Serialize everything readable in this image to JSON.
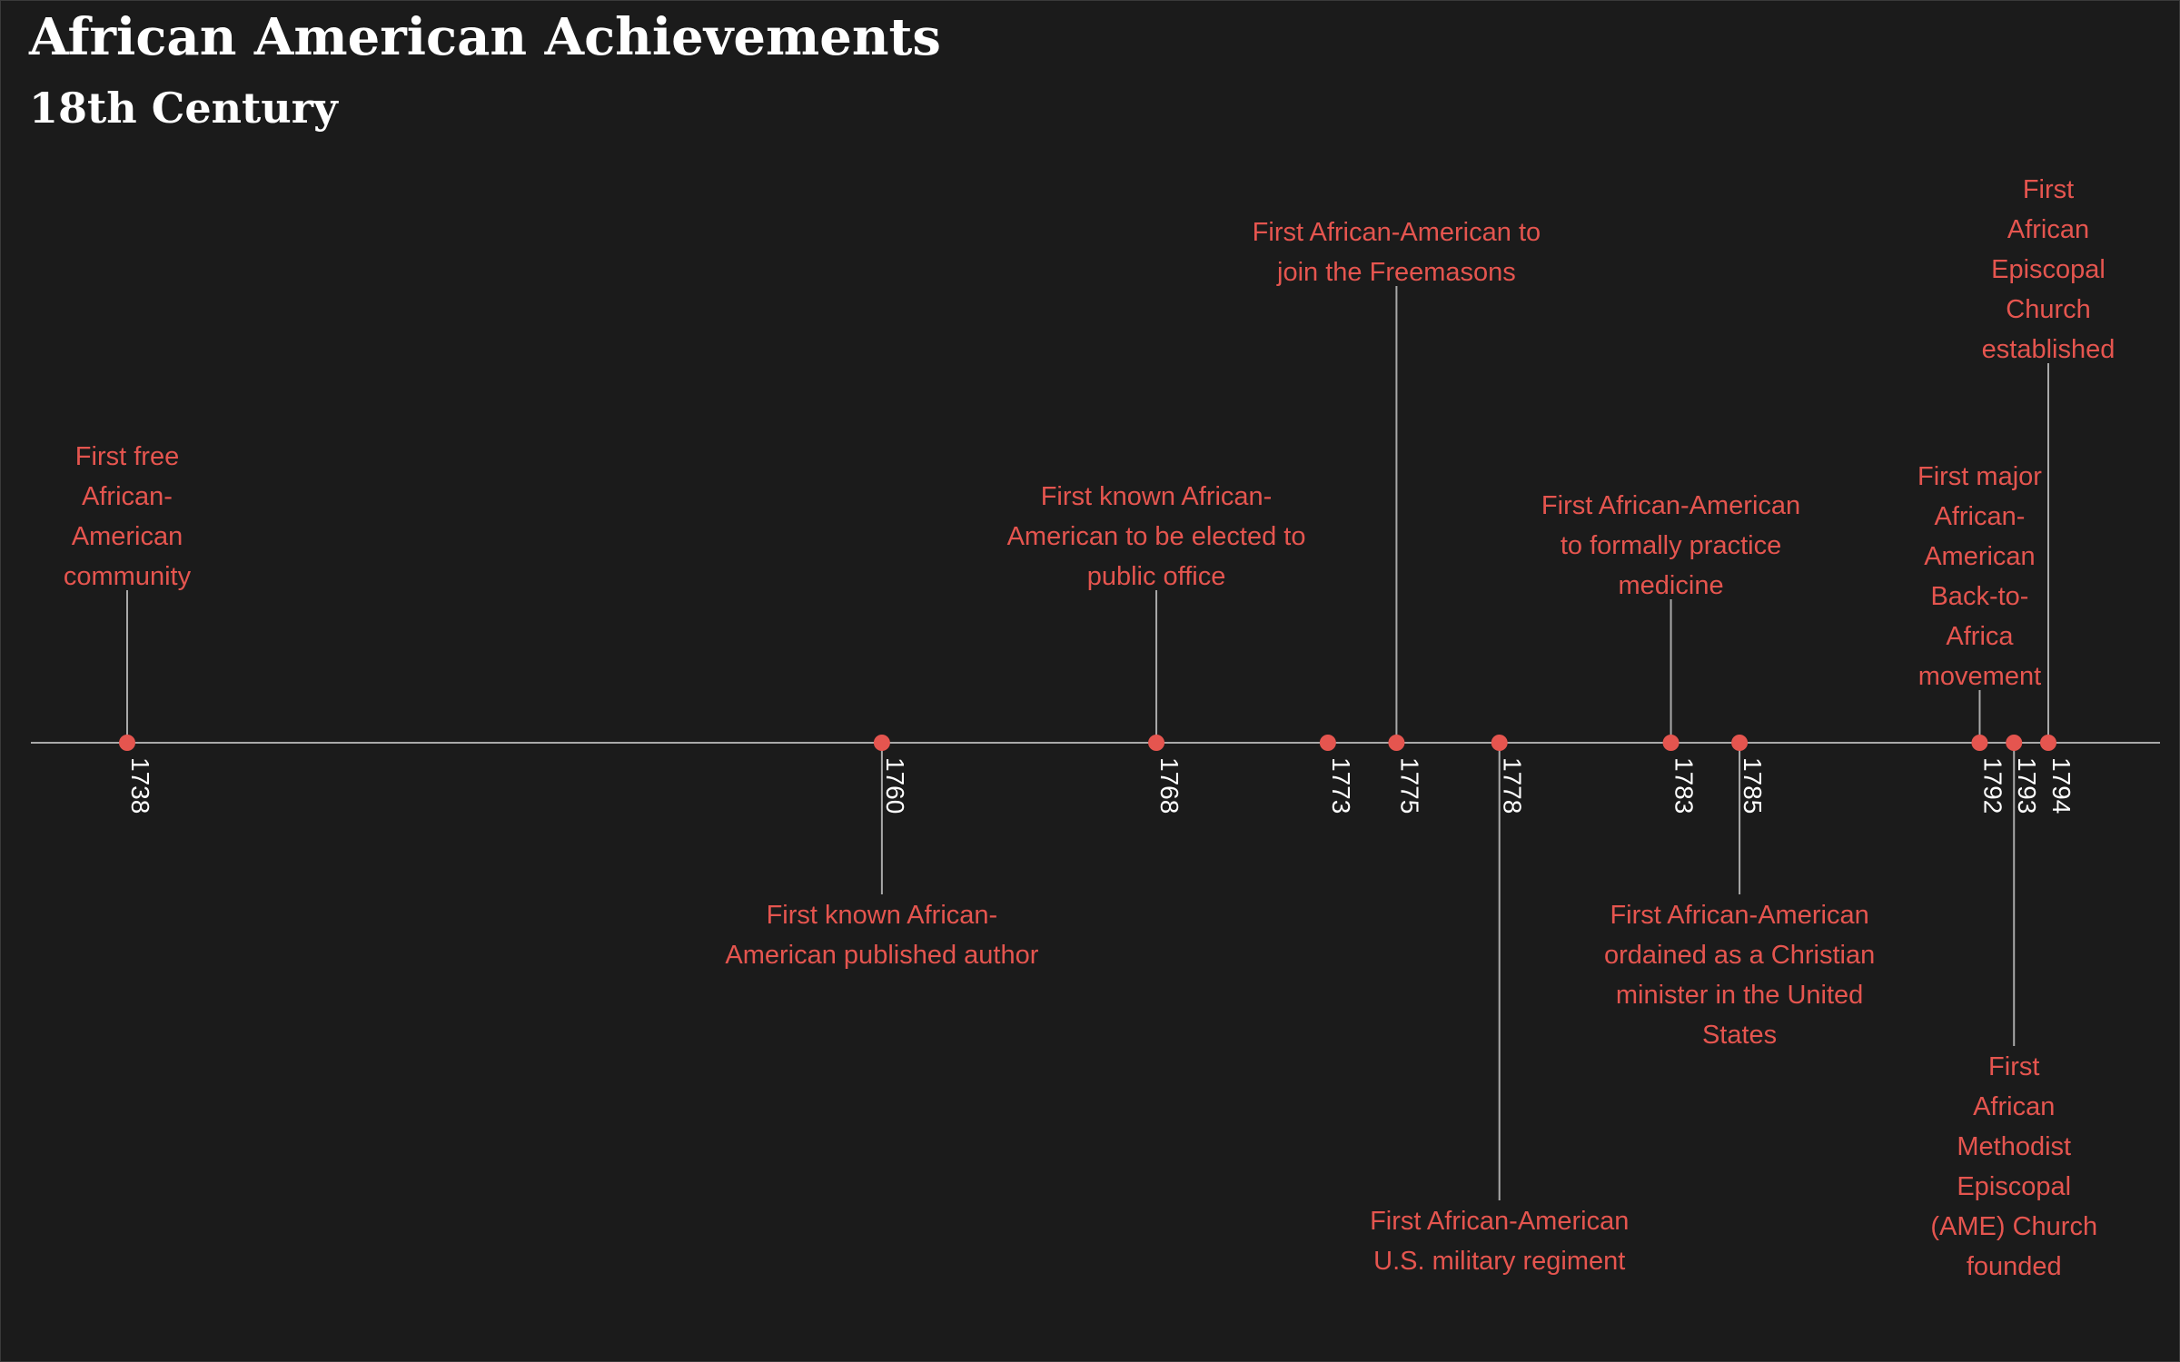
{
  "title": "African American Achievements",
  "subtitle": "18th Century",
  "colors": {
    "background": "#1b1b1b",
    "accent": "#e5554f",
    "axis": "#a9a9a9",
    "text": "#ffffff"
  },
  "chart_data": {
    "type": "timeline",
    "title": "African American Achievements",
    "subtitle": "18th Century",
    "xlim": [
      1738,
      1794
    ],
    "events": [
      {
        "year": 1738,
        "label": [
          "First free",
          "African-",
          "American",
          "community"
        ],
        "side": "above"
      },
      {
        "year": 1760,
        "label": [
          "First known African-",
          "American published author"
        ],
        "side": "below"
      },
      {
        "year": 1768,
        "label": [
          "First known African-",
          "American to be elected to",
          "public office"
        ],
        "side": "above"
      },
      {
        "year": 1773,
        "label": [],
        "side": "none"
      },
      {
        "year": 1775,
        "label": [
          "First African-American to",
          "join the Freemasons"
        ],
        "side": "above"
      },
      {
        "year": 1778,
        "label": [
          "First African-American",
          "U.S. military regiment"
        ],
        "side": "below"
      },
      {
        "year": 1783,
        "label": [
          "First African-American",
          "to formally practice",
          "medicine"
        ],
        "side": "above"
      },
      {
        "year": 1785,
        "label": [
          "First African-American",
          "ordained as a Christian",
          "minister in the United",
          "States"
        ],
        "side": "below"
      },
      {
        "year": 1792,
        "label": [
          "First major",
          "African-",
          "American",
          "Back-to-",
          "Africa",
          "movement"
        ],
        "side": "above"
      },
      {
        "year": 1793,
        "label": [
          "First",
          "African",
          "Methodist",
          "Episcopal",
          "(AME) Church",
          "founded"
        ],
        "side": "below"
      },
      {
        "year": 1794,
        "label": [
          "First",
          "African",
          "Episcopal",
          "Church",
          "established"
        ],
        "side": "above"
      }
    ]
  }
}
